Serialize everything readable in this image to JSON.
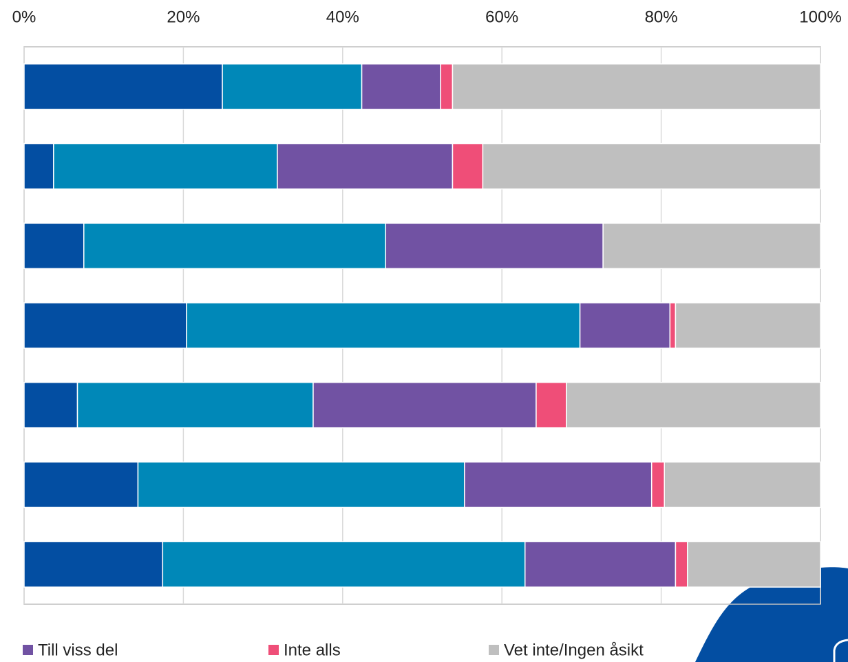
{
  "chart_data": {
    "type": "bar",
    "orientation": "horizontal",
    "stacked": true,
    "categories": [
      null,
      null,
      null,
      null,
      null,
      null,
      null
    ],
    "series": [
      {
        "color": "#034ea2",
        "values": [
          24.9,
          3.7,
          7.5,
          20.4,
          6.7,
          14.3,
          17.4
        ]
      },
      {
        "color": "#0088b8",
        "values": [
          17.5,
          28.1,
          37.9,
          49.4,
          29.6,
          41.0,
          45.5
        ]
      },
      {
        "name": "Till viss del",
        "color": "#7152a3",
        "values": [
          9.9,
          22.0,
          27.3,
          11.3,
          28.0,
          23.5,
          18.9
        ]
      },
      {
        "name": "Inte alls",
        "color": "#ef4e78",
        "values": [
          1.5,
          3.8,
          0,
          0.7,
          3.8,
          1.6,
          1.5
        ]
      },
      {
        "name": "Vet inte/Ingen åsikt",
        "color": "#bfbfbf",
        "values": [
          46.2,
          42.4,
          27.3,
          18.2,
          31.9,
          19.6,
          16.7
        ]
      }
    ],
    "xlim": [
      0,
      100
    ],
    "xticks": [
      {
        "value": 0,
        "label": "0%"
      },
      {
        "value": 20,
        "label": "20%"
      },
      {
        "value": 40,
        "label": "40%"
      },
      {
        "value": 60,
        "label": "60%"
      },
      {
        "value": 80,
        "label": "80%"
      },
      {
        "value": 100,
        "label": "100%"
      }
    ],
    "grid": true
  }
}
